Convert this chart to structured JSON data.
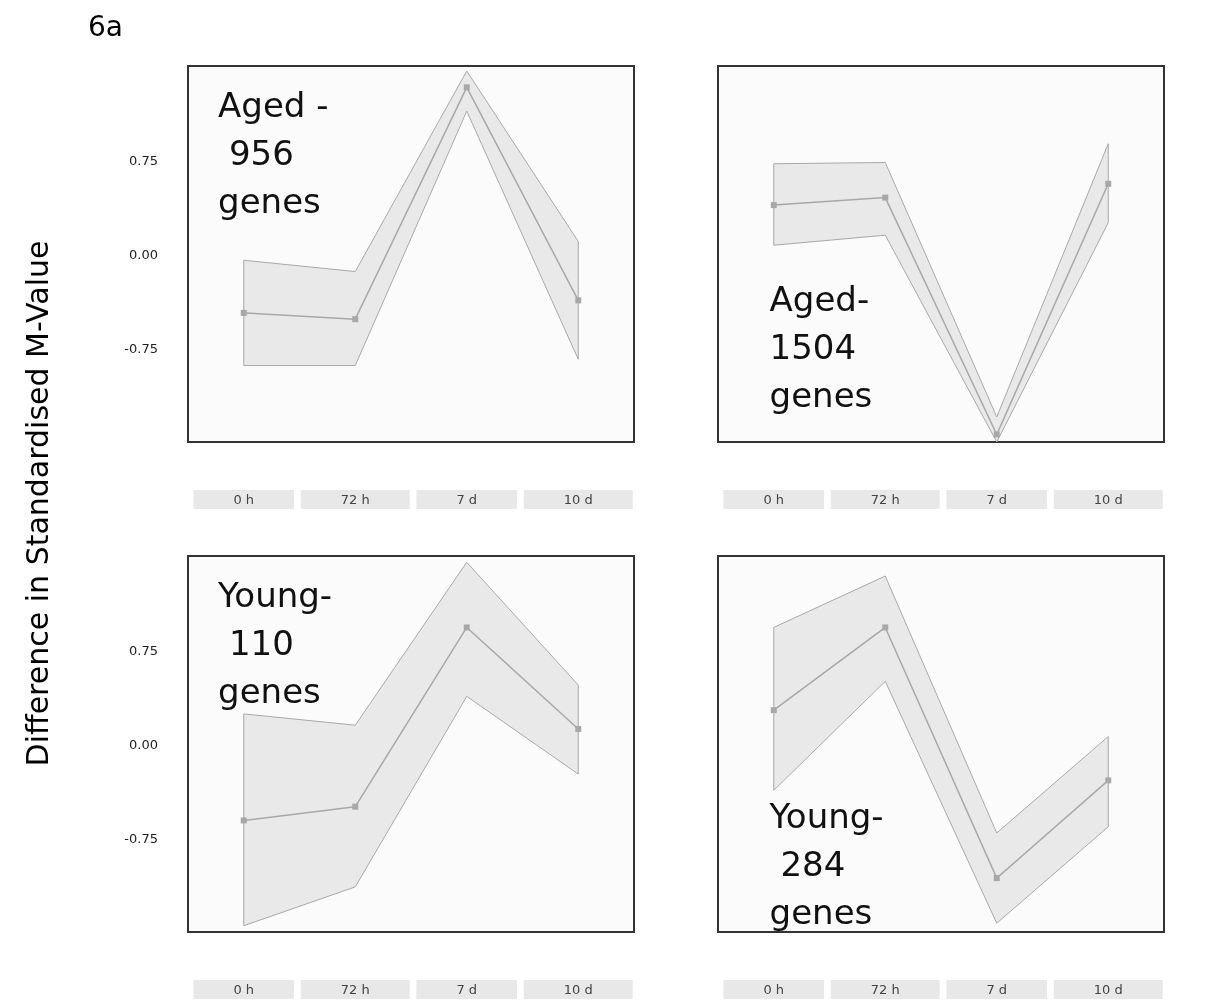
{
  "chart_data": [
    {
      "type": "line",
      "title": "6a",
      "ylabel": "Difference in Standardised M-Value",
      "categories": [
        "0 h",
        "72 h",
        "7 d",
        "10 d"
      ],
      "ylim": [
        -1.5,
        1.5
      ],
      "yticks": [
        {
          "value": 0.75,
          "label": "0.75"
        },
        {
          "value": 0,
          "label": "0.00"
        },
        {
          "value": -0.75,
          "label": "-0.75"
        }
      ],
      "grid": false,
      "marker": "square",
      "annotations": [
        "Aged - 956 genes"
      ],
      "series": [
        {
          "color": "#a8a8a8",
          "values": [
            -0.47,
            -0.52,
            1.33,
            -0.37
          ],
          "lower": [
            -0.89,
            -0.89,
            1.14,
            -0.84
          ],
          "upper": [
            -0.05,
            -0.14,
            1.46,
            0.1
          ]
        }
      ]
    },
    {
      "type": "line",
      "categories": [
        "0 h",
        "72 h",
        "7 d",
        "10 d"
      ],
      "ylim": [
        -1.5,
        1.5
      ],
      "yticks": [
        {
          "value": 0.75,
          "label": "0.75"
        },
        {
          "value": 0,
          "label": "0.00"
        },
        {
          "value": -0.75,
          "label": "-0.75"
        }
      ],
      "tick_labels": "x",
      "grid": false,
      "marker": "square",
      "annotations": [
        "Aged- 1504 genes"
      ],
      "series": [
        {
          "color": "#a8a8a8",
          "values": [
            0.39,
            0.45,
            -1.44,
            0.56
          ],
          "lower": [
            0.07,
            0.15,
            -1.5,
            0.25
          ],
          "upper": [
            0.72,
            0.73,
            -1.3,
            0.88
          ]
        }
      ]
    },
    {
      "type": "line",
      "categories": [
        "0 h",
        "72 h",
        "7 d",
        "10 d"
      ],
      "ylim": [
        -1.5,
        1.5
      ],
      "yticks": [
        {
          "value": 0.75,
          "label": "0.75"
        },
        {
          "value": 0,
          "label": "0.00"
        },
        {
          "value": -0.75,
          "label": "-0.75"
        }
      ],
      "grid": false,
      "marker": "square",
      "annotations": [
        "Young- 110 genes"
      ],
      "series": [
        {
          "color": "#a8a8a8",
          "values": [
            -0.61,
            -0.5,
            0.93,
            0.12
          ],
          "lower": [
            -1.45,
            -1.14,
            0.38,
            -0.24
          ],
          "upper": [
            0.24,
            0.15,
            1.45,
            0.47
          ]
        }
      ]
    },
    {
      "type": "line",
      "categories": [
        "0 h",
        "72 h",
        "7 d",
        "10 d"
      ],
      "ylim": [
        -1.5,
        1.5
      ],
      "yticks": [
        {
          "value": 0.75,
          "label": "0.75"
        },
        {
          "value": 0,
          "label": "0.00"
        },
        {
          "value": -0.75,
          "label": "-0.75"
        }
      ],
      "tick_labels": "x",
      "grid": false,
      "marker": "square",
      "annotations": [
        "Young- 284 genes"
      ],
      "series": [
        {
          "color": "#a8a8a8",
          "values": [
            0.27,
            0.93,
            -1.07,
            -0.29
          ],
          "lower": [
            -0.37,
            0.5,
            -1.43,
            -0.66
          ],
          "upper": [
            0.93,
            1.34,
            -0.71,
            0.06
          ]
        }
      ]
    }
  ]
}
